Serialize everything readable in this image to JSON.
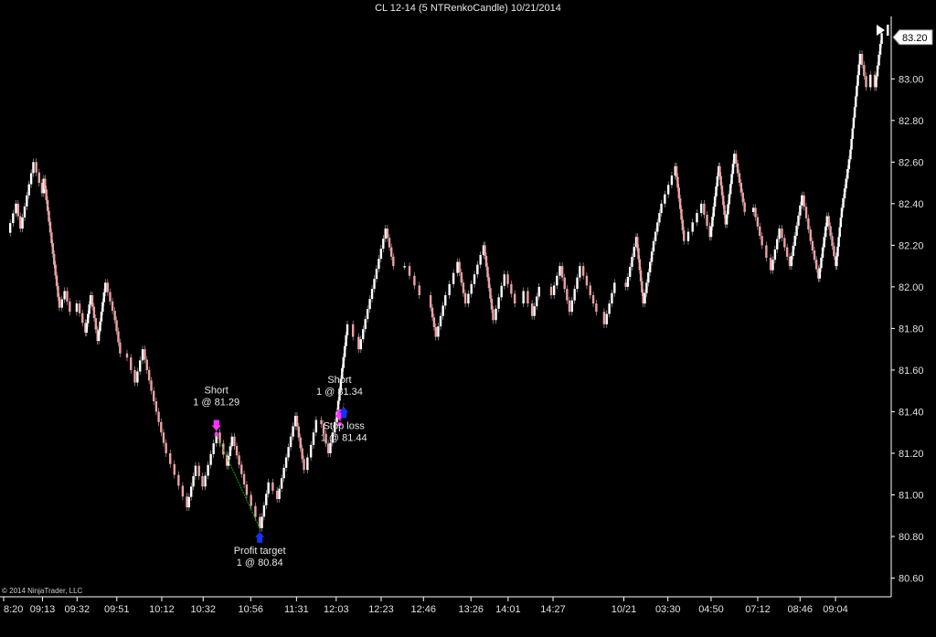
{
  "window": {
    "title": "CL 12-14 (5 NTRenkoCandle)  10/21/2014",
    "copyright": "© 2014 NinjaTrader, LLC",
    "scroll_to_end_icon": "skip-to-end-icon"
  },
  "chart_data": {
    "type": "renko-candlestick",
    "title": "CL 12-14 (5 NTRenkoCandle)  10/21/2014",
    "instrument": "CL 12-14",
    "bar_type": "5 NTRenkoCandle",
    "date": "10/21/2014",
    "ylim": [
      80.51,
      83.3
    ],
    "y_ticks": [
      "83.00",
      "82.80",
      "82.60",
      "82.40",
      "82.20",
      "82.00",
      "81.80",
      "81.60",
      "81.40",
      "81.20",
      "81.00",
      "80.80",
      "80.60"
    ],
    "x_ticks": [
      "8:20",
      "09:13",
      "09:32",
      "09:51",
      "10:12",
      "10:32",
      "10:56",
      "11:31",
      "12:03",
      "12:23",
      "12:46",
      "13:26",
      "14:01",
      "14:27",
      "10/21",
      "03:30",
      "04:50",
      "07:12",
      "08:46",
      "09:04"
    ],
    "last_price": "83.20",
    "grid": false,
    "colors": {
      "background": "#000000",
      "up_candle": "#ffffff",
      "down_candle": "#f0a0a0",
      "wick": "#c0c0c0",
      "axis": "#ffffff",
      "short": "#ff33ff",
      "profit_target": "#1133ff",
      "trade_line": "#00aa00"
    },
    "price_path": [
      [
        0,
        82.26
      ],
      [
        0.01,
        82.4
      ],
      [
        0.015,
        82.28
      ],
      [
        0.03,
        82.6
      ],
      [
        0.04,
        82.45
      ],
      [
        0.042,
        82.52
      ],
      [
        0.06,
        81.9
      ],
      [
        0.066,
        81.98
      ],
      [
        0.072,
        81.88
      ],
      [
        0.08,
        81.92
      ],
      [
        0.09,
        81.78
      ],
      [
        0.096,
        81.96
      ],
      [
        0.104,
        81.74
      ],
      [
        0.113,
        82.02
      ],
      [
        0.124,
        81.84
      ],
      [
        0.13,
        81.68
      ],
      [
        0.138,
        81.66
      ],
      [
        0.147,
        81.54
      ],
      [
        0.156,
        81.7
      ],
      [
        0.166,
        81.5
      ],
      [
        0.183,
        81.2
      ],
      [
        0.207,
        80.94
      ],
      [
        0.217,
        81.14
      ],
      [
        0.225,
        81.04
      ],
      [
        0.241,
        81.3
      ],
      [
        0.253,
        81.14
      ],
      [
        0.259,
        81.28
      ],
      [
        0.27,
        81.1
      ],
      [
        0.276,
        81.0
      ],
      [
        0.291,
        80.84
      ],
      [
        0.301,
        81.06
      ],
      [
        0.311,
        80.98
      ],
      [
        0.332,
        81.38
      ],
      [
        0.342,
        81.12
      ],
      [
        0.35,
        81.24
      ],
      [
        0.356,
        81.36
      ],
      [
        0.362,
        81.34
      ],
      [
        0.37,
        81.2
      ],
      [
        0.38,
        81.4
      ],
      [
        0.392,
        81.82
      ],
      [
        0.405,
        81.7
      ],
      [
        0.436,
        82.28
      ],
      [
        0.445,
        82.1
      ],
      [
        0.458,
        82.1
      ],
      [
        0.475,
        81.96
      ],
      [
        0.488,
        81.9
      ],
      [
        0.494,
        81.76
      ],
      [
        0.505,
        81.96
      ],
      [
        0.519,
        82.12
      ],
      [
        0.528,
        81.92
      ],
      [
        0.549,
        82.2
      ],
      [
        0.56,
        81.84
      ],
      [
        0.573,
        82.06
      ],
      [
        0.585,
        81.92
      ],
      [
        0.595,
        81.98
      ],
      [
        0.605,
        81.86
      ],
      [
        0.613,
        82.0
      ],
      [
        0.627,
        81.96
      ],
      [
        0.637,
        82.1
      ],
      [
        0.648,
        81.88
      ],
      [
        0.66,
        82.1
      ],
      [
        0.672,
        81.96
      ],
      [
        0.679,
        81.88
      ],
      [
        0.688,
        81.82
      ],
      [
        0.7,
        82.02
      ],
      [
        0.713,
        82.0
      ],
      [
        0.725,
        82.24
      ],
      [
        0.733,
        81.92
      ],
      [
        0.745,
        82.22
      ],
      [
        0.754,
        82.4
      ],
      [
        0.77,
        82.58
      ],
      [
        0.78,
        82.22
      ],
      [
        0.8,
        82.4
      ],
      [
        0.81,
        82.24
      ],
      [
        0.82,
        82.58
      ],
      [
        0.828,
        82.3
      ],
      [
        0.838,
        82.64
      ],
      [
        0.85,
        82.36
      ],
      [
        0.86,
        82.38
      ],
      [
        0.87,
        82.2
      ],
      [
        0.88,
        82.08
      ],
      [
        0.89,
        82.28
      ],
      [
        0.902,
        82.1
      ],
      [
        0.916,
        82.44
      ],
      [
        0.926,
        82.22
      ],
      [
        0.935,
        82.04
      ],
      [
        0.945,
        82.34
      ],
      [
        0.955,
        82.1
      ],
      [
        0.962,
        82.38
      ],
      [
        0.972,
        82.66
      ],
      [
        0.983,
        83.12
      ],
      [
        0.99,
        82.96
      ],
      [
        0.995,
        83.02
      ],
      [
        1.0,
        82.96
      ],
      [
        1.008,
        83.22
      ]
    ],
    "annotations": [
      {
        "text_lines": [
          "Short",
          "1 @ 81.29"
        ],
        "price": 81.29,
        "at": 0.241,
        "color": "#ff33ff",
        "arrow": "down",
        "label_position": "above"
      },
      {
        "text_lines": [
          "Profit target",
          "1 @ 80.84"
        ],
        "price": 80.84,
        "at": 0.291,
        "color": "#1133ff",
        "arrow": "up",
        "label_position": "below"
      },
      {
        "text_lines": [
          "Short",
          "1 @ 81.34"
        ],
        "price": 81.34,
        "at": 0.383,
        "color": "#ff33ff",
        "arrow": "down",
        "label_position": "above"
      },
      {
        "text_lines": [
          "Stop loss",
          "1 @ 81.44"
        ],
        "price": 81.44,
        "at": 0.388,
        "color": "#1133ff",
        "arrow": "up",
        "label_position": "below"
      }
    ]
  }
}
